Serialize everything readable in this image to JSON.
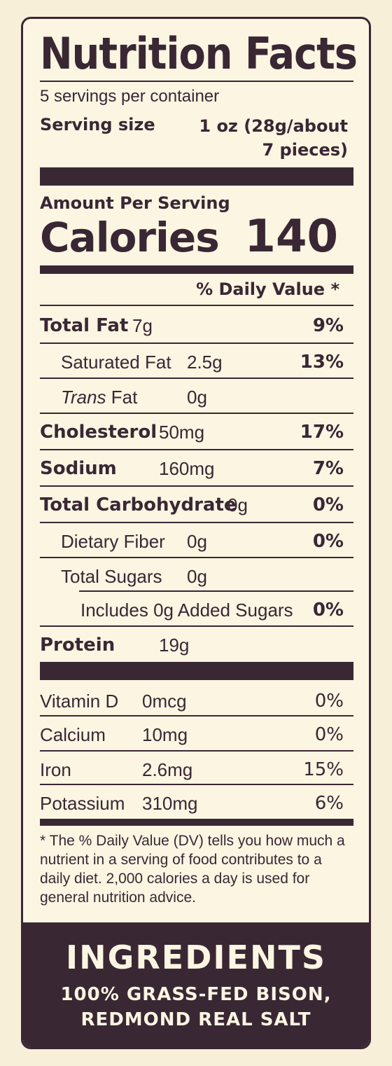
{
  "label": {
    "title": "Nutrition Facts",
    "servings_per_container": "5 servings per container",
    "serving_size_label": "Serving size",
    "serving_size_value_line1": "1 oz (28g/about",
    "serving_size_value_line2": "7 pieces)",
    "amount_per_serving": "Amount Per Serving",
    "calories_label": "Calories",
    "calories_value": "140",
    "daily_value_header": "% Daily Value *"
  },
  "nutrients": [
    {
      "name": "Total Fat",
      "amount": "7g",
      "dv": "9%"
    },
    {
      "name": "Saturated Fat",
      "amount": "2.5g",
      "dv": "13%"
    },
    {
      "name_italic": "Trans",
      "name": " Fat",
      "amount": "0g",
      "dv": ""
    },
    {
      "name": "Cholesterol",
      "amount": "50mg",
      "dv": "17%"
    },
    {
      "name": "Sodium",
      "amount": "160mg",
      "dv": "7%"
    },
    {
      "name": "Total Carbohydrate",
      "amount": "0g",
      "dv": "0%"
    },
    {
      "name": "Dietary Fiber",
      "amount": "0g",
      "dv": "0%"
    },
    {
      "name": "Total Sugars",
      "amount": "0g",
      "dv": ""
    },
    {
      "name": "Includes 0g Added Sugars",
      "amount": "",
      "dv": "0%"
    },
    {
      "name": "Protein",
      "amount": "19g",
      "dv": ""
    }
  ],
  "vitamins": [
    {
      "name": "Vitamin D",
      "amount": "0mcg",
      "dv": "0%"
    },
    {
      "name": "Calcium",
      "amount": "10mg",
      "dv": "0%"
    },
    {
      "name": "Iron",
      "amount": "2.6mg",
      "dv": "15%"
    },
    {
      "name": "Potassium",
      "amount": "310mg",
      "dv": "6%"
    }
  ],
  "footnote": "* The % Daily Value (DV) tells you how much a nutrient in a serving of food contributes to a daily diet. 2,000 calories a day is used for general nutrition advice.",
  "ingredients": {
    "title": "INGREDIENTS",
    "line1": "100% GRASS-FED BISON,",
    "line2": "REDMOND REAL SALT"
  },
  "colors": {
    "ink": "#3a2734",
    "paper": "#fbf5e2",
    "background": "#f7efd8"
  }
}
